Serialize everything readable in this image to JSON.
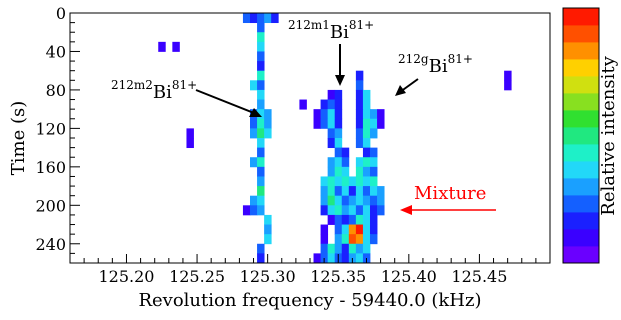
{
  "chart_data": {
    "type": "heatmap",
    "xlabel": "Revolution frequency - 59440.0 (kHz)",
    "ylabel": "Time (s)",
    "colorbar_label": "Relative intensity",
    "xlim": [
      125.16,
      125.5
    ],
    "ylim": [
      260,
      0
    ],
    "x_ticks": [
      "125.20",
      "125.25",
      "125.30",
      "125.35",
      "125.40",
      "125.45"
    ],
    "x_tick_values": [
      125.2,
      125.25,
      125.3,
      125.35,
      125.4,
      125.45
    ],
    "y_ticks": [
      "0",
      "40",
      "80",
      "120",
      "160",
      "200",
      "240"
    ],
    "y_tick_values": [
      0,
      40,
      80,
      120,
      160,
      200,
      240
    ],
    "bin_width": 0.005,
    "bin_height": 10,
    "palette": [
      "#6a00ff",
      "#3a00ff",
      "#1a20ff",
      "#1460ff",
      "#1aa0ff",
      "#22d8f8",
      "#1ef0c8",
      "#20e880",
      "#30e030",
      "#88e020",
      "#d0e010",
      "#ffd000",
      "#ff9000",
      "#ff5000",
      "#ff1a00"
    ],
    "cells": [
      {
        "x": 125.285,
        "y": 0,
        "v": 3
      },
      {
        "x": 125.29,
        "y": 0,
        "v": 2
      },
      {
        "x": 125.295,
        "y": 0,
        "v": 3
      },
      {
        "x": 125.3,
        "y": 0,
        "v": 4
      },
      {
        "x": 125.305,
        "y": 0,
        "v": 2
      },
      {
        "x": 125.295,
        "y": 10,
        "v": 3
      },
      {
        "x": 125.295,
        "y": 20,
        "v": 6
      },
      {
        "x": 125.225,
        "y": 30,
        "v": 1
      },
      {
        "x": 125.235,
        "y": 30,
        "v": 1
      },
      {
        "x": 125.295,
        "y": 30,
        "v": 5
      },
      {
        "x": 125.295,
        "y": 40,
        "v": 3
      },
      {
        "x": 125.295,
        "y": 50,
        "v": 2
      },
      {
        "x": 125.295,
        "y": 60,
        "v": 6
      },
      {
        "x": 125.365,
        "y": 60,
        "v": 2
      },
      {
        "x": 125.47,
        "y": 60,
        "v": 1
      },
      {
        "x": 125.29,
        "y": 70,
        "v": 5
      },
      {
        "x": 125.295,
        "y": 70,
        "v": 3
      },
      {
        "x": 125.365,
        "y": 70,
        "v": 3
      },
      {
        "x": 125.47,
        "y": 70,
        "v": 1
      },
      {
        "x": 125.295,
        "y": 80,
        "v": 5
      },
      {
        "x": 125.345,
        "y": 80,
        "v": 1
      },
      {
        "x": 125.35,
        "y": 80,
        "v": 2
      },
      {
        "x": 125.365,
        "y": 80,
        "v": 2
      },
      {
        "x": 125.37,
        "y": 80,
        "v": 5
      },
      {
        "x": 125.295,
        "y": 90,
        "v": 4
      },
      {
        "x": 125.325,
        "y": 90,
        "v": 1
      },
      {
        "x": 125.34,
        "y": 90,
        "v": 2
      },
      {
        "x": 125.345,
        "y": 90,
        "v": 3
      },
      {
        "x": 125.35,
        "y": 90,
        "v": 2
      },
      {
        "x": 125.365,
        "y": 90,
        "v": 2
      },
      {
        "x": 125.37,
        "y": 90,
        "v": 5
      },
      {
        "x": 125.29,
        "y": 100,
        "v": 3
      },
      {
        "x": 125.295,
        "y": 100,
        "v": 5
      },
      {
        "x": 125.3,
        "y": 100,
        "v": 4
      },
      {
        "x": 125.335,
        "y": 100,
        "v": 1
      },
      {
        "x": 125.34,
        "y": 100,
        "v": 3
      },
      {
        "x": 125.345,
        "y": 100,
        "v": 5
      },
      {
        "x": 125.35,
        "y": 100,
        "v": 2
      },
      {
        "x": 125.365,
        "y": 100,
        "v": 2
      },
      {
        "x": 125.37,
        "y": 100,
        "v": 5
      },
      {
        "x": 125.375,
        "y": 100,
        "v": 4
      },
      {
        "x": 125.38,
        "y": 100,
        "v": 1
      },
      {
        "x": 125.29,
        "y": 110,
        "v": 3
      },
      {
        "x": 125.295,
        "y": 110,
        "v": 6
      },
      {
        "x": 125.3,
        "y": 110,
        "v": 4
      },
      {
        "x": 125.335,
        "y": 110,
        "v": 1
      },
      {
        "x": 125.34,
        "y": 110,
        "v": 3
      },
      {
        "x": 125.345,
        "y": 110,
        "v": 5
      },
      {
        "x": 125.35,
        "y": 110,
        "v": 2
      },
      {
        "x": 125.365,
        "y": 110,
        "v": 2
      },
      {
        "x": 125.37,
        "y": 110,
        "v": 6
      },
      {
        "x": 125.375,
        "y": 110,
        "v": 5
      },
      {
        "x": 125.38,
        "y": 110,
        "v": 1
      },
      {
        "x": 125.245,
        "y": 120,
        "v": 1
      },
      {
        "x": 125.29,
        "y": 120,
        "v": 4
      },
      {
        "x": 125.295,
        "y": 120,
        "v": 7
      },
      {
        "x": 125.3,
        "y": 120,
        "v": 5
      },
      {
        "x": 125.345,
        "y": 120,
        "v": 3
      },
      {
        "x": 125.35,
        "y": 120,
        "v": 4
      },
      {
        "x": 125.365,
        "y": 120,
        "v": 3
      },
      {
        "x": 125.37,
        "y": 120,
        "v": 6
      },
      {
        "x": 125.375,
        "y": 120,
        "v": 4
      },
      {
        "x": 125.245,
        "y": 130,
        "v": 1
      },
      {
        "x": 125.295,
        "y": 130,
        "v": 5
      },
      {
        "x": 125.345,
        "y": 130,
        "v": 2
      },
      {
        "x": 125.35,
        "y": 130,
        "v": 5
      },
      {
        "x": 125.365,
        "y": 130,
        "v": 3
      },
      {
        "x": 125.37,
        "y": 130,
        "v": 5
      },
      {
        "x": 125.295,
        "y": 140,
        "v": 3
      },
      {
        "x": 125.35,
        "y": 140,
        "v": 3
      },
      {
        "x": 125.355,
        "y": 140,
        "v": 2
      },
      {
        "x": 125.37,
        "y": 140,
        "v": 2
      },
      {
        "x": 125.375,
        "y": 140,
        "v": 3
      },
      {
        "x": 125.29,
        "y": 150,
        "v": 4
      },
      {
        "x": 125.295,
        "y": 150,
        "v": 6
      },
      {
        "x": 125.345,
        "y": 150,
        "v": 4
      },
      {
        "x": 125.35,
        "y": 150,
        "v": 5
      },
      {
        "x": 125.355,
        "y": 150,
        "v": 3
      },
      {
        "x": 125.365,
        "y": 150,
        "v": 5
      },
      {
        "x": 125.37,
        "y": 150,
        "v": 6
      },
      {
        "x": 125.375,
        "y": 150,
        "v": 5
      },
      {
        "x": 125.295,
        "y": 160,
        "v": 3
      },
      {
        "x": 125.345,
        "y": 160,
        "v": 4
      },
      {
        "x": 125.35,
        "y": 160,
        "v": 6
      },
      {
        "x": 125.355,
        "y": 160,
        "v": 5
      },
      {
        "x": 125.365,
        "y": 160,
        "v": 6
      },
      {
        "x": 125.37,
        "y": 160,
        "v": 4
      },
      {
        "x": 125.375,
        "y": 160,
        "v": 3
      },
      {
        "x": 125.295,
        "y": 170,
        "v": 4
      },
      {
        "x": 125.34,
        "y": 170,
        "v": 5
      },
      {
        "x": 125.345,
        "y": 170,
        "v": 6
      },
      {
        "x": 125.35,
        "y": 170,
        "v": 5
      },
      {
        "x": 125.355,
        "y": 170,
        "v": 6
      },
      {
        "x": 125.36,
        "y": 170,
        "v": 5
      },
      {
        "x": 125.365,
        "y": 170,
        "v": 6
      },
      {
        "x": 125.37,
        "y": 170,
        "v": 5
      },
      {
        "x": 125.375,
        "y": 170,
        "v": 6
      },
      {
        "x": 125.295,
        "y": 180,
        "v": 7
      },
      {
        "x": 125.34,
        "y": 180,
        "v": 4
      },
      {
        "x": 125.345,
        "y": 180,
        "v": 6
      },
      {
        "x": 125.35,
        "y": 180,
        "v": 3
      },
      {
        "x": 125.355,
        "y": 180,
        "v": 5
      },
      {
        "x": 125.36,
        "y": 180,
        "v": 2
      },
      {
        "x": 125.365,
        "y": 180,
        "v": 5
      },
      {
        "x": 125.37,
        "y": 180,
        "v": 3
      },
      {
        "x": 125.375,
        "y": 180,
        "v": 5
      },
      {
        "x": 125.38,
        "y": 180,
        "v": 4
      },
      {
        "x": 125.29,
        "y": 190,
        "v": 4
      },
      {
        "x": 125.295,
        "y": 190,
        "v": 5
      },
      {
        "x": 125.34,
        "y": 190,
        "v": 4
      },
      {
        "x": 125.345,
        "y": 190,
        "v": 7
      },
      {
        "x": 125.35,
        "y": 190,
        "v": 5
      },
      {
        "x": 125.355,
        "y": 190,
        "v": 3
      },
      {
        "x": 125.36,
        "y": 190,
        "v": 4
      },
      {
        "x": 125.365,
        "y": 190,
        "v": 5
      },
      {
        "x": 125.37,
        "y": 190,
        "v": 4
      },
      {
        "x": 125.375,
        "y": 190,
        "v": 3
      },
      {
        "x": 125.38,
        "y": 190,
        "v": 4
      },
      {
        "x": 125.285,
        "y": 200,
        "v": 1
      },
      {
        "x": 125.29,
        "y": 200,
        "v": 3
      },
      {
        "x": 125.295,
        "y": 200,
        "v": 4
      },
      {
        "x": 125.34,
        "y": 200,
        "v": 2
      },
      {
        "x": 125.345,
        "y": 200,
        "v": 5
      },
      {
        "x": 125.35,
        "y": 200,
        "v": 6
      },
      {
        "x": 125.355,
        "y": 200,
        "v": 4
      },
      {
        "x": 125.36,
        "y": 200,
        "v": 5
      },
      {
        "x": 125.365,
        "y": 200,
        "v": 3
      },
      {
        "x": 125.37,
        "y": 200,
        "v": 5
      },
      {
        "x": 125.375,
        "y": 200,
        "v": 2
      },
      {
        "x": 125.38,
        "y": 200,
        "v": 3
      },
      {
        "x": 125.3,
        "y": 210,
        "v": 5
      },
      {
        "x": 125.345,
        "y": 210,
        "v": 1
      },
      {
        "x": 125.35,
        "y": 210,
        "v": 3
      },
      {
        "x": 125.355,
        "y": 210,
        "v": 2
      },
      {
        "x": 125.36,
        "y": 210,
        "v": 3
      },
      {
        "x": 125.365,
        "y": 210,
        "v": 6
      },
      {
        "x": 125.37,
        "y": 210,
        "v": 5
      },
      {
        "x": 125.375,
        "y": 210,
        "v": 2
      },
      {
        "x": 125.3,
        "y": 220,
        "v": 4
      },
      {
        "x": 125.34,
        "y": 220,
        "v": 1
      },
      {
        "x": 125.35,
        "y": 220,
        "v": 3
      },
      {
        "x": 125.355,
        "y": 220,
        "v": 5
      },
      {
        "x": 125.36,
        "y": 220,
        "v": 12
      },
      {
        "x": 125.365,
        "y": 220,
        "v": 14
      },
      {
        "x": 125.37,
        "y": 220,
        "v": 5
      },
      {
        "x": 125.375,
        "y": 220,
        "v": 2
      },
      {
        "x": 125.3,
        "y": 230,
        "v": 5
      },
      {
        "x": 125.34,
        "y": 230,
        "v": 1
      },
      {
        "x": 125.35,
        "y": 230,
        "v": 4
      },
      {
        "x": 125.355,
        "y": 230,
        "v": 6
      },
      {
        "x": 125.36,
        "y": 230,
        "v": 13
      },
      {
        "x": 125.365,
        "y": 230,
        "v": 12
      },
      {
        "x": 125.37,
        "y": 230,
        "v": 5
      },
      {
        "x": 125.375,
        "y": 230,
        "v": 3
      },
      {
        "x": 125.295,
        "y": 240,
        "v": 3
      },
      {
        "x": 125.34,
        "y": 240,
        "v": 3
      },
      {
        "x": 125.345,
        "y": 240,
        "v": 6
      },
      {
        "x": 125.35,
        "y": 240,
        "v": 4
      },
      {
        "x": 125.355,
        "y": 240,
        "v": 2
      },
      {
        "x": 125.36,
        "y": 240,
        "v": 6
      },
      {
        "x": 125.365,
        "y": 240,
        "v": 4
      },
      {
        "x": 125.37,
        "y": 240,
        "v": 5
      },
      {
        "x": 125.295,
        "y": 250,
        "v": 2
      },
      {
        "x": 125.335,
        "y": 250,
        "v": 1
      },
      {
        "x": 125.34,
        "y": 250,
        "v": 3
      },
      {
        "x": 125.345,
        "y": 250,
        "v": 5
      },
      {
        "x": 125.35,
        "y": 250,
        "v": 3
      },
      {
        "x": 125.355,
        "y": 250,
        "v": 2
      },
      {
        "x": 125.36,
        "y": 250,
        "v": 4
      },
      {
        "x": 125.365,
        "y": 250,
        "v": 5
      },
      {
        "x": 125.37,
        "y": 250,
        "v": 3
      }
    ],
    "annotations": [
      {
        "id": "bi212m2",
        "mass": "212m2",
        "symbol": "Bi",
        "charge": "81+"
      },
      {
        "id": "bi212m1",
        "mass": "212m1",
        "symbol": "Bi",
        "charge": "81+"
      },
      {
        "id": "bi212g",
        "mass": "212g",
        "symbol": "Bi",
        "charge": "81+"
      },
      {
        "id": "mixture",
        "text": "Mixture",
        "color": "#ff0000"
      }
    ]
  }
}
